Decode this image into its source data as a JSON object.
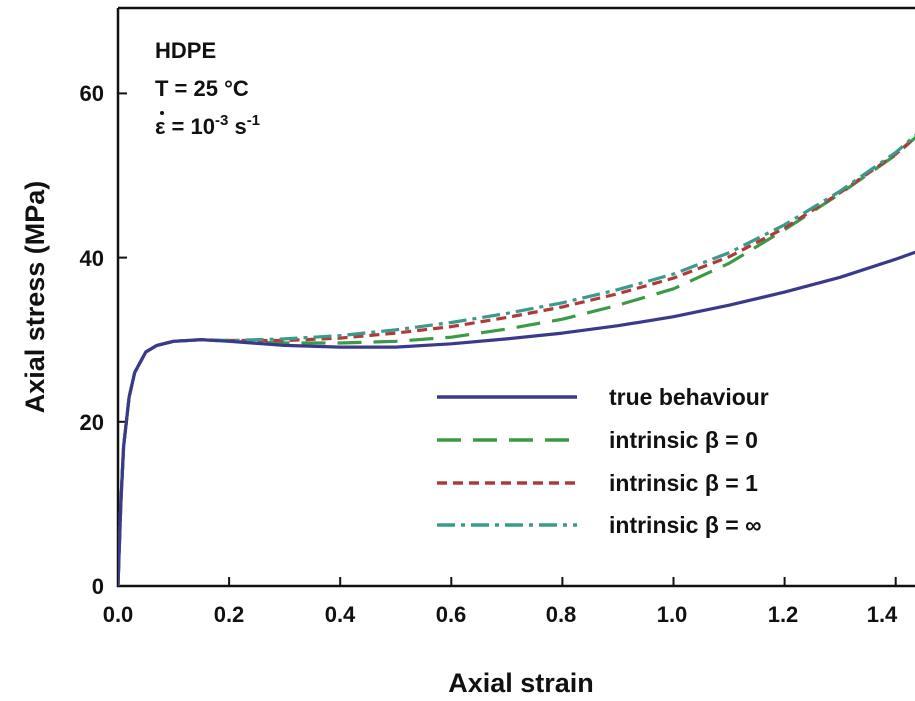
{
  "chart_data": {
    "type": "line",
    "xlabel": "Axial strain",
    "ylabel": "Axial stress (MPa)",
    "xlim": [
      0,
      1.5
    ],
    "ylim": [
      0,
      70
    ],
    "xticks": [
      "0.0",
      "0.2",
      "0.4",
      "0.6",
      "0.8",
      "1.0",
      "1.2",
      "1.4"
    ],
    "xtick_values": [
      0,
      0.2,
      0.4,
      0.6,
      0.8,
      1.0,
      1.2,
      1.4
    ],
    "yticks": [
      "0",
      "20",
      "40",
      "60"
    ],
    "ytick_values": [
      0,
      20,
      40,
      60
    ],
    "annotation": {
      "material": "HDPE",
      "temperature": "T = 25 °C",
      "rate_prefix": "ε = 10",
      "rate_exp1": "-3",
      "rate_unit": " s",
      "rate_exp2": "-1"
    },
    "legend_position": "lower-right",
    "grid": false,
    "series": [
      {
        "name": "true behaviour",
        "color": "#3a3a8c",
        "style": "solid",
        "x": [
          0,
          0.005,
          0.01,
          0.02,
          0.03,
          0.05,
          0.07,
          0.1,
          0.15,
          0.2,
          0.3,
          0.4,
          0.5,
          0.6,
          0.7,
          0.8,
          0.9,
          1.0,
          1.1,
          1.2,
          1.3,
          1.4,
          1.5
        ],
        "y": [
          0,
          10,
          17,
          23,
          26,
          28.5,
          29.3,
          29.8,
          30,
          29.8,
          29.3,
          29.1,
          29.1,
          29.5,
          30.1,
          30.8,
          31.7,
          32.8,
          34.2,
          35.8,
          37.6,
          39.8,
          42.2
        ]
      },
      {
        "name": "intrinsic β = 0",
        "color": "#3c9a46",
        "style": "long-dash",
        "x": [
          0,
          0.005,
          0.01,
          0.02,
          0.03,
          0.05,
          0.07,
          0.1,
          0.15,
          0.2,
          0.3,
          0.4,
          0.5,
          0.6,
          0.7,
          0.8,
          0.9,
          1.0,
          1.1,
          1.2,
          1.3,
          1.4,
          1.5
        ],
        "y": [
          0,
          10,
          17,
          23,
          26,
          28.5,
          29.3,
          29.8,
          30,
          29.8,
          29.6,
          29.6,
          29.8,
          30.3,
          31.3,
          32.5,
          34.2,
          36.2,
          39.3,
          43.4,
          47.8,
          52.5,
          58.5
        ]
      },
      {
        "name": "intrinsic β = 1",
        "color": "#b03a3a",
        "style": "short-dash",
        "x": [
          0,
          0.005,
          0.01,
          0.02,
          0.03,
          0.05,
          0.07,
          0.1,
          0.15,
          0.2,
          0.3,
          0.4,
          0.5,
          0.6,
          0.7,
          0.8,
          0.9,
          1.0,
          1.1,
          1.2,
          1.3,
          1.4,
          1.5
        ],
        "y": [
          0,
          10,
          17,
          23,
          26,
          28.5,
          29.3,
          29.8,
          30,
          29.9,
          29.9,
          30.2,
          30.8,
          31.6,
          32.7,
          34.0,
          35.6,
          37.5,
          40.1,
          43.6,
          47.9,
          52.6,
          58.5
        ]
      },
      {
        "name": "intrinsic β = ∞",
        "color": "#3a9a8c",
        "style": "dash-dot",
        "x": [
          0,
          0.005,
          0.01,
          0.02,
          0.03,
          0.05,
          0.07,
          0.1,
          0.15,
          0.2,
          0.3,
          0.4,
          0.5,
          0.6,
          0.7,
          0.8,
          0.9,
          1.0,
          1.1,
          1.2,
          1.3,
          1.4,
          1.5
        ],
        "y": [
          0,
          10,
          17,
          23,
          26,
          28.5,
          29.3,
          29.8,
          30,
          29.9,
          30.1,
          30.5,
          31.2,
          32.1,
          33.2,
          34.5,
          36.1,
          38.0,
          40.6,
          44.0,
          48.1,
          52.8,
          58.7
        ]
      }
    ]
  }
}
